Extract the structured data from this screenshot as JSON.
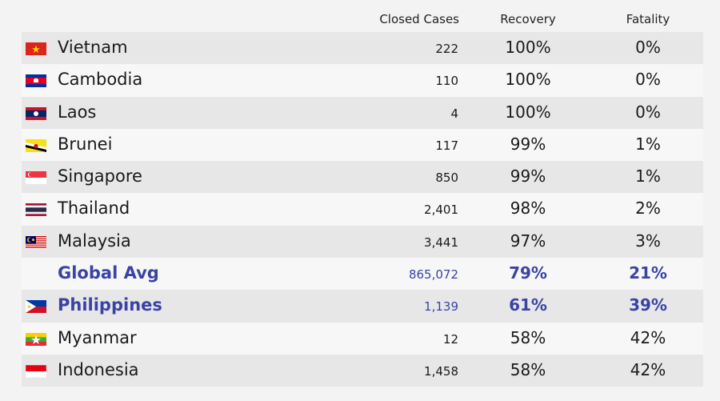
{
  "header": {
    "closed_cases": "Closed Cases",
    "recovery": "Recovery",
    "fatality": "Fatality"
  },
  "colors": {
    "highlight": "#3a43a4",
    "row_dark": "#e7e7e7",
    "row_light": "#f7f7f7"
  },
  "chart_data": {
    "type": "table",
    "columns": [
      "",
      "Closed Cases",
      "Recovery",
      "Fatality"
    ],
    "rows": [
      {
        "country": "Vietnam",
        "flag": "vietnam-flag-icon",
        "closed_cases": "222",
        "recovery": "100%",
        "fatality": "0%",
        "highlight": false
      },
      {
        "country": "Cambodia",
        "flag": "cambodia-flag-icon",
        "closed_cases": "110",
        "recovery": "100%",
        "fatality": "0%",
        "highlight": false
      },
      {
        "country": "Laos",
        "flag": "laos-flag-icon",
        "closed_cases": "4",
        "recovery": "100%",
        "fatality": "0%",
        "highlight": false
      },
      {
        "country": "Brunei",
        "flag": "brunei-flag-icon",
        "closed_cases": "117",
        "recovery": "99%",
        "fatality": "1%",
        "highlight": false
      },
      {
        "country": "Singapore",
        "flag": "singapore-flag-icon",
        "closed_cases": "850",
        "recovery": "99%",
        "fatality": "1%",
        "highlight": false
      },
      {
        "country": "Thailand",
        "flag": "thailand-flag-icon",
        "closed_cases": "2,401",
        "recovery": "98%",
        "fatality": "2%",
        "highlight": false
      },
      {
        "country": "Malaysia",
        "flag": "malaysia-flag-icon",
        "closed_cases": "3,441",
        "recovery": "97%",
        "fatality": "3%",
        "highlight": false
      },
      {
        "country": "Global Avg",
        "flag": "",
        "closed_cases": "865,072",
        "recovery": "79%",
        "fatality": "21%",
        "highlight": true
      },
      {
        "country": "Philippines",
        "flag": "philippines-flag-icon",
        "closed_cases": "1,139",
        "recovery": "61%",
        "fatality": "39%",
        "highlight": true
      },
      {
        "country": "Myanmar",
        "flag": "myanmar-flag-icon",
        "closed_cases": "12",
        "recovery": "58%",
        "fatality": "42%",
        "highlight": false
      },
      {
        "country": "Indonesia",
        "flag": "indonesia-flag-icon",
        "closed_cases": "1,458",
        "recovery": "58%",
        "fatality": "42%",
        "highlight": false
      }
    ]
  }
}
